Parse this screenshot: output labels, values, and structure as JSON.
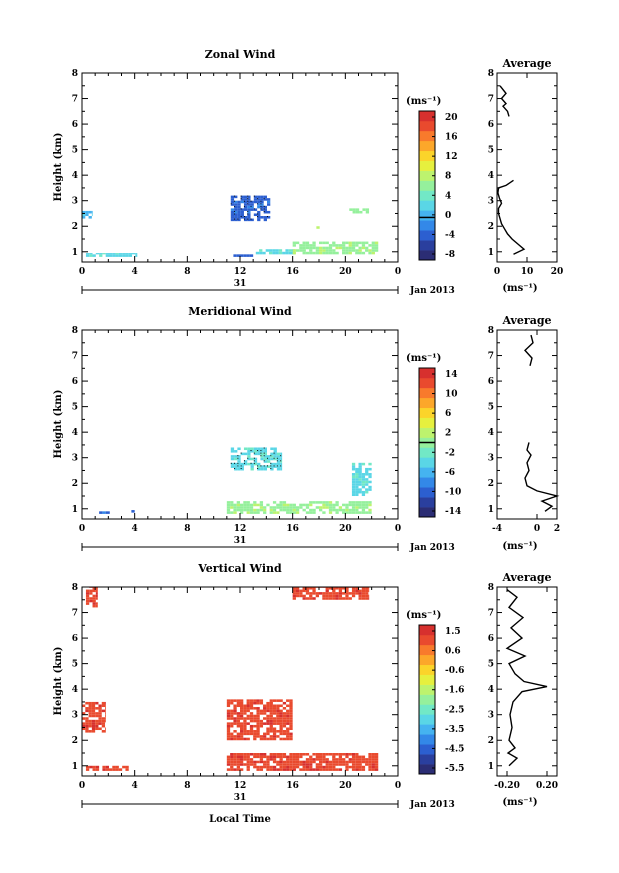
{
  "panels": [
    {
      "title": "Zonal Wind",
      "ylabel": "Height (km)",
      "colorbar_unit": "(ms⁻¹)",
      "colorbar_ticks": [
        "20",
        "16",
        "12",
        "8",
        "4",
        "0",
        "-4",
        "-8"
      ],
      "average_title": "Average",
      "average_xticks": [
        "0",
        "10",
        "20"
      ],
      "average_xlabel": "(ms⁻¹)",
      "date_day": "31",
      "date_label": "Jan 2013"
    },
    {
      "title": "Meridional Wind",
      "ylabel": "Height (km)",
      "colorbar_unit": "(ms⁻¹)",
      "colorbar_ticks": [
        "14",
        "10",
        "6",
        "2",
        "-2",
        "-6",
        "-10",
        "-14"
      ],
      "average_title": "Average",
      "average_xticks": [
        "-4",
        "0",
        "2"
      ],
      "average_xlabel": "(ms⁻¹)",
      "date_day": "31",
      "date_label": "Jan 2013"
    },
    {
      "title": "Vertical Wind",
      "ylabel": "Height (km)",
      "colorbar_unit": "(ms⁻¹)",
      "colorbar_ticks": [
        "1.5",
        "0.6",
        "-0.6",
        "-1.6",
        "-2.5",
        "-3.5",
        "-4.5",
        "-5.5"
      ],
      "average_title": "Average",
      "average_xticks": [
        "-0.20",
        "0.20"
      ],
      "average_xlabel": "(ms⁻¹)",
      "date_day": "31",
      "date_label": "Jan 2013",
      "xlabel": "Local Time"
    }
  ],
  "colors": {
    "cbar_colors": [
      "#2b2d74",
      "#2a3f9e",
      "#2c5fd0",
      "#3388e8",
      "#45b3f0",
      "#5ad6e6",
      "#72e8c6",
      "#95f09c",
      "#bdf36e",
      "#e6f03e",
      "#fbd42a",
      "#fca72a",
      "#f87a2c",
      "#e94a2e",
      "#d7302e"
    ],
    "zonal_blue": "#3b9bf0",
    "zonal_cyan": "#4fc5f2",
    "zonal_green": "#8ff0a6",
    "zonal_dark": "#2850b8",
    "merid_teal": "#78edcc",
    "merid_green": "#a6f2a0",
    "merid_blue": "#2f63d8",
    "vert_yellow": "#fcd23c",
    "vert_yellow2": "#f9e95a"
  },
  "chart_data": [
    {
      "type": "heatmap",
      "title": "Zonal Wind",
      "xlabel": "",
      "ylabel": "Height (km)",
      "xlim": [
        0,
        24
      ],
      "ylim": [
        0.6,
        8
      ],
      "x_ticks": [
        0,
        4,
        8,
        12,
        16,
        20
      ],
      "y_ticks": [
        1,
        2,
        3,
        4,
        5,
        6,
        7,
        8
      ],
      "colorbar": {
        "unit": "ms⁻¹",
        "range": [
          -8,
          20
        ],
        "ticks": [
          20,
          16,
          12,
          8,
          4,
          0,
          -4,
          -8
        ]
      },
      "patches": [
        {
          "x": [
            0,
            0.8
          ],
          "y": [
            2.3,
            2.6
          ],
          "value": 1
        },
        {
          "x": [
            0.3,
            4.2
          ],
          "y": [
            0.8,
            0.95
          ],
          "value": 3
        },
        {
          "x": [
            11.3,
            14.3
          ],
          "y": [
            2.2,
            3.2
          ],
          "value": -4
        },
        {
          "x": [
            11.0,
            13.0
          ],
          "y": [
            0.8,
            0.9
          ],
          "value": -3
        },
        {
          "x": [
            13.2,
            16.2
          ],
          "y": [
            0.9,
            1.1
          ],
          "value": 2
        },
        {
          "x": [
            16.0,
            22.5
          ],
          "y": [
            0.9,
            1.4
          ],
          "value": 6
        },
        {
          "x": [
            17.8,
            18.3
          ],
          "y": [
            1.9,
            2.1
          ],
          "value": 7
        },
        {
          "x": [
            20.3,
            21.8
          ],
          "y": [
            2.5,
            2.7
          ],
          "value": 6
        }
      ],
      "average_profile": {
        "xlim": [
          0,
          20
        ],
        "x_ticks": [
          0,
          10,
          20
        ],
        "height": [
          0.9,
          1.1,
          1.3,
          1.5,
          1.7,
          1.9,
          2.1,
          2.3,
          2.5,
          2.7,
          2.9,
          3.1,
          3.3,
          3.5,
          3.6,
          3.8,
          6.3,
          6.5,
          6.7,
          6.8,
          7.0,
          7.2,
          7.5
        ],
        "value": [
          5.5,
          9.0,
          7.0,
          5.0,
          3.5,
          2.5,
          1.5,
          1.0,
          0.5,
          0.5,
          1.5,
          0.8,
          0.3,
          0.5,
          3.0,
          5.5,
          4.0,
          3.5,
          2.0,
          3.0,
          1.5,
          3.0,
          1.0
        ]
      }
    },
    {
      "type": "heatmap",
      "title": "Meridional Wind",
      "xlabel": "",
      "ylabel": "Height (km)",
      "xlim": [
        0,
        24
      ],
      "ylim": [
        0.6,
        8
      ],
      "x_ticks": [
        0,
        4,
        8,
        12,
        16,
        20
      ],
      "y_ticks": [
        1,
        2,
        3,
        4,
        5,
        6,
        7,
        8
      ],
      "colorbar": {
        "unit": "ms⁻¹",
        "range": [
          -14,
          14
        ],
        "ticks": [
          14,
          10,
          6,
          2,
          -2,
          -6,
          -10,
          -14
        ]
      },
      "patches": [
        {
          "x": [
            1.3,
            2.1
          ],
          "y": [
            0.8,
            0.9
          ],
          "value": -9
        },
        {
          "x": [
            3.5,
            4.0
          ],
          "y": [
            0.85,
            0.95
          ],
          "value": -9
        },
        {
          "x": [
            11.3,
            15.2
          ],
          "y": [
            2.5,
            3.4
          ],
          "value": -3
        },
        {
          "x": [
            11.0,
            22.0
          ],
          "y": [
            0.8,
            1.3
          ],
          "value": 0
        },
        {
          "x": [
            20.5,
            22.0
          ],
          "y": [
            1.5,
            2.8
          ],
          "value": -4
        }
      ],
      "average_profile": {
        "xlim": [
          -4,
          2
        ],
        "x_ticks": [
          -4,
          0,
          2
        ],
        "height": [
          0.9,
          1.1,
          1.3,
          1.5,
          1.7,
          1.9,
          2.2,
          2.5,
          2.8,
          3.1,
          3.3,
          3.6,
          6.6,
          6.9,
          7.2,
          7.5,
          7.8
        ],
        "value": [
          0.8,
          1.5,
          0.5,
          2.0,
          0.0,
          -1.0,
          -1.2,
          -0.8,
          -1.0,
          -0.6,
          -1.0,
          -0.8,
          -0.7,
          -0.5,
          -1.2,
          -0.4,
          -0.6
        ]
      }
    },
    {
      "type": "heatmap",
      "title": "Vertical Wind",
      "xlabel": "Local Time",
      "ylabel": "Height (km)",
      "xlim": [
        0,
        24
      ],
      "ylim": [
        0.6,
        8
      ],
      "x_ticks": [
        0,
        4,
        8,
        12,
        16,
        20
      ],
      "y_ticks": [
        1,
        2,
        3,
        4,
        5,
        6,
        7,
        8
      ],
      "colorbar": {
        "unit": "ms⁻¹",
        "range": [
          -5.5,
          1.5
        ],
        "ticks": [
          1.5,
          0.6,
          -0.6,
          -1.6,
          -2.5,
          -3.5,
          -4.5,
          -5.5
        ]
      },
      "patches": [
        {
          "x": [
            0.3,
            1.2
          ],
          "y": [
            7.2,
            8.0
          ],
          "value": 0.9
        },
        {
          "x": [
            0,
            1.8
          ],
          "y": [
            2.3,
            3.5
          ],
          "value": 0.9
        },
        {
          "x": [
            0.3,
            3.8
          ],
          "y": [
            0.8,
            1.0
          ],
          "value": 0.9
        },
        {
          "x": [
            11.0,
            16.0
          ],
          "y": [
            2.0,
            3.6
          ],
          "value": 0.9
        },
        {
          "x": [
            11.0,
            22.5
          ],
          "y": [
            0.8,
            1.5
          ],
          "value": 0.9
        },
        {
          "x": [
            16.0,
            21.8
          ],
          "y": [
            7.5,
            8.0
          ],
          "value": 0.9
        }
      ],
      "average_profile": {
        "xlim": [
          -0.3,
          0.3
        ],
        "x_ticks": [
          -0.2,
          0.2
        ],
        "height": [
          1.0,
          1.3,
          1.5,
          1.7,
          2.0,
          2.5,
          3.0,
          3.5,
          3.9,
          4.1,
          4.3,
          4.6,
          5.0,
          5.3,
          5.6,
          6.0,
          6.4,
          6.8,
          7.2,
          7.6,
          7.9
        ],
        "value": [
          -0.18,
          -0.1,
          -0.19,
          -0.12,
          -0.18,
          -0.15,
          -0.17,
          -0.14,
          -0.05,
          0.2,
          -0.03,
          -0.12,
          -0.18,
          -0.02,
          -0.2,
          -0.05,
          -0.16,
          -0.04,
          -0.18,
          -0.1,
          -0.2
        ]
      }
    }
  ]
}
